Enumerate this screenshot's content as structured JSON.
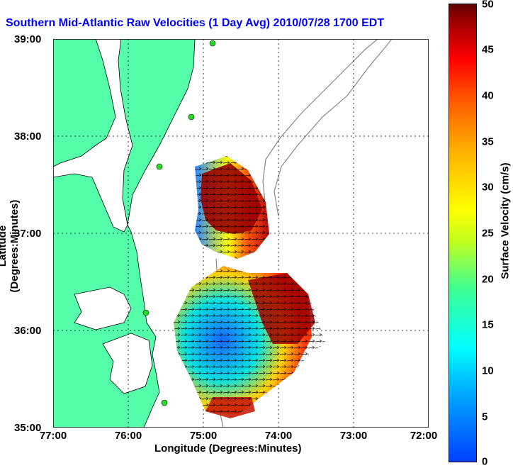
{
  "title": "Southern Mid-Atlantic Raw Velocities (1 Day Avg) 2010/07/28 1700 EDT",
  "axes": {
    "ylabel": "Latitude (Degrees:Minutes)",
    "xlabel": "Longitude (Degrees:Minutes)",
    "lat_ticks": [
      "39:00",
      "38:00",
      "37:00",
      "36:00",
      "35:00"
    ],
    "lon_ticks": [
      "77:00",
      "76:00",
      "75:00",
      "74:00",
      "73:00",
      "72:00"
    ]
  },
  "colorbar": {
    "label": "Surface Velocity (cm/s)",
    "ticks": [
      "50",
      "45",
      "40",
      "35",
      "30",
      "25",
      "20",
      "15",
      "10",
      "5",
      "0"
    ],
    "min": 0,
    "max": 50
  },
  "colors": {
    "land": "#55ffaa",
    "title": "#0000ff",
    "sites": "#22dd22",
    "bathymetry": "#888888",
    "grid": "#000000"
  },
  "radar_sites": [
    "site-1",
    "site-2",
    "site-3",
    "site-4",
    "site-5"
  ]
}
